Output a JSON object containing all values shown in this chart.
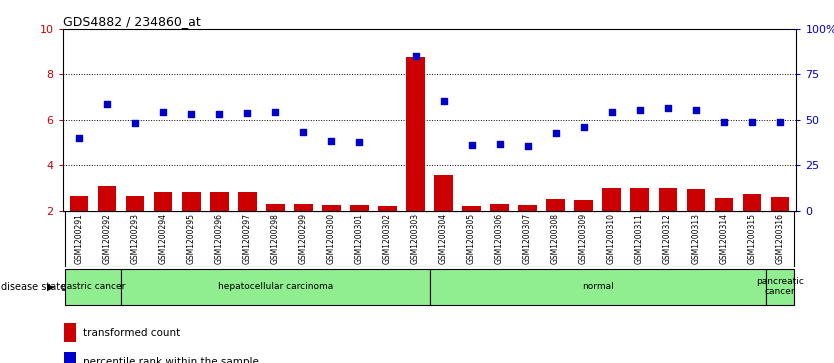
{
  "title": "GDS4882 / 234860_at",
  "samples": [
    "GSM1200291",
    "GSM1200292",
    "GSM1200293",
    "GSM1200294",
    "GSM1200295",
    "GSM1200296",
    "GSM1200297",
    "GSM1200298",
    "GSM1200299",
    "GSM1200300",
    "GSM1200301",
    "GSM1200302",
    "GSM1200303",
    "GSM1200304",
    "GSM1200305",
    "GSM1200306",
    "GSM1200307",
    "GSM1200308",
    "GSM1200309",
    "GSM1200310",
    "GSM1200311",
    "GSM1200312",
    "GSM1200313",
    "GSM1200314",
    "GSM1200315",
    "GSM1200316"
  ],
  "transformed_count": [
    2.65,
    3.1,
    2.65,
    2.8,
    2.8,
    2.8,
    2.8,
    2.3,
    2.3,
    2.25,
    2.25,
    2.2,
    8.75,
    3.55,
    2.2,
    2.3,
    2.25,
    2.5,
    2.45,
    3.0,
    3.0,
    3.0,
    2.95,
    2.55,
    2.75,
    2.6
  ],
  "percentile_rank": [
    40.0,
    58.5,
    48.0,
    54.5,
    53.0,
    53.0,
    53.5,
    54.5,
    43.5,
    38.5,
    37.5,
    null,
    85.0,
    60.5,
    36.0,
    36.5,
    35.5,
    42.5,
    46.0,
    54.5,
    55.5,
    56.5,
    55.5,
    49.0,
    49.0,
    49.0
  ],
  "disease_groups": [
    {
      "label": "gastric cancer",
      "start": 0,
      "end": 1
    },
    {
      "label": "hepatocellular carcinoma",
      "start": 2,
      "end": 12
    },
    {
      "label": "normal",
      "start": 13,
      "end": 24
    },
    {
      "label": "pancreatic\ncancer",
      "start": 25,
      "end": 25
    }
  ],
  "ylim_left": [
    2,
    10
  ],
  "ylim_right": [
    0,
    100
  ],
  "yticks_left": [
    2,
    4,
    6,
    8,
    10
  ],
  "yticks_right": [
    0,
    25,
    50,
    75,
    100
  ],
  "bar_color": "#cc0000",
  "dot_color": "#0000cc",
  "group_color": "#90ee90",
  "tick_bg_color": "#d0d0d0",
  "bar_color_hex": "#cc0000",
  "dot_color_hex": "#0000cc",
  "legend_bar_label": "transformed count",
  "legend_dot_label": "percentile rank within the sample",
  "disease_label": "disease state"
}
